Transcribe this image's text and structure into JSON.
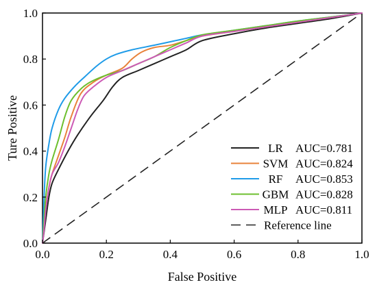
{
  "chart_data": {
    "type": "line",
    "xlabel": "False Positive",
    "ylabel": "Ture Positive",
    "xlim": [
      0,
      1.0
    ],
    "ylim": [
      0,
      1.0
    ],
    "x_ticks": [
      "0.0",
      "0.2",
      "0.4",
      "0.6",
      "0.8",
      "1.0"
    ],
    "y_ticks": [
      "0.0",
      "0.2",
      "0.4",
      "0.6",
      "0.8",
      "1.0"
    ],
    "grid": false,
    "legend_position": "bottom-right",
    "series": [
      {
        "name": "LR",
        "auc_label": "AUC=0.781",
        "color": "#222222",
        "points": [
          [
            0,
            0
          ],
          [
            0.005,
            0.05
          ],
          [
            0.01,
            0.1
          ],
          [
            0.02,
            0.2
          ],
          [
            0.03,
            0.26
          ],
          [
            0.05,
            0.32
          ],
          [
            0.08,
            0.4
          ],
          [
            0.11,
            0.47
          ],
          [
            0.15,
            0.55
          ],
          [
            0.19,
            0.62
          ],
          [
            0.22,
            0.68
          ],
          [
            0.25,
            0.72
          ],
          [
            0.3,
            0.75
          ],
          [
            0.35,
            0.78
          ],
          [
            0.4,
            0.81
          ],
          [
            0.45,
            0.84
          ],
          [
            0.5,
            0.88
          ],
          [
            0.6,
            0.91
          ],
          [
            0.7,
            0.935
          ],
          [
            0.8,
            0.955
          ],
          [
            0.9,
            0.975
          ],
          [
            1.0,
            1.0
          ]
        ]
      },
      {
        "name": "SVM",
        "auc_label": "AUC=0.824",
        "color": "#e8823a",
        "points": [
          [
            0,
            0
          ],
          [
            0.005,
            0.08
          ],
          [
            0.01,
            0.15
          ],
          [
            0.02,
            0.24
          ],
          [
            0.03,
            0.3
          ],
          [
            0.05,
            0.38
          ],
          [
            0.07,
            0.46
          ],
          [
            0.09,
            0.55
          ],
          [
            0.12,
            0.65
          ],
          [
            0.16,
            0.7
          ],
          [
            0.2,
            0.73
          ],
          [
            0.25,
            0.76
          ],
          [
            0.28,
            0.8
          ],
          [
            0.31,
            0.83
          ],
          [
            0.35,
            0.85
          ],
          [
            0.4,
            0.86
          ],
          [
            0.45,
            0.88
          ],
          [
            0.5,
            0.9
          ],
          [
            0.6,
            0.92
          ],
          [
            0.7,
            0.94
          ],
          [
            0.8,
            0.96
          ],
          [
            0.9,
            0.98
          ],
          [
            1.0,
            1.0
          ]
        ]
      },
      {
        "name": "RF",
        "auc_label": "AUC=0.853",
        "color": "#1e9be8",
        "points": [
          [
            0,
            0
          ],
          [
            0.005,
            0.2
          ],
          [
            0.01,
            0.33
          ],
          [
            0.02,
            0.43
          ],
          [
            0.03,
            0.5
          ],
          [
            0.05,
            0.58
          ],
          [
            0.07,
            0.63
          ],
          [
            0.1,
            0.68
          ],
          [
            0.13,
            0.72
          ],
          [
            0.17,
            0.77
          ],
          [
            0.2,
            0.8
          ],
          [
            0.23,
            0.82
          ],
          [
            0.28,
            0.84
          ],
          [
            0.35,
            0.86
          ],
          [
            0.4,
            0.875
          ],
          [
            0.45,
            0.89
          ],
          [
            0.5,
            0.905
          ],
          [
            0.6,
            0.925
          ],
          [
            0.7,
            0.945
          ],
          [
            0.8,
            0.965
          ],
          [
            0.9,
            0.982
          ],
          [
            1.0,
            1.0
          ]
        ]
      },
      {
        "name": "GBM",
        "auc_label": "AUC=0.828",
        "color": "#6cbf2e",
        "points": [
          [
            0,
            0
          ],
          [
            0.005,
            0.1
          ],
          [
            0.01,
            0.2
          ],
          [
            0.02,
            0.3
          ],
          [
            0.03,
            0.36
          ],
          [
            0.05,
            0.45
          ],
          [
            0.07,
            0.55
          ],
          [
            0.09,
            0.62
          ],
          [
            0.12,
            0.67
          ],
          [
            0.15,
            0.7
          ],
          [
            0.2,
            0.73
          ],
          [
            0.25,
            0.75
          ],
          [
            0.3,
            0.78
          ],
          [
            0.35,
            0.81
          ],
          [
            0.4,
            0.85
          ],
          [
            0.45,
            0.88
          ],
          [
            0.5,
            0.905
          ],
          [
            0.6,
            0.925
          ],
          [
            0.7,
            0.945
          ],
          [
            0.8,
            0.965
          ],
          [
            0.9,
            0.982
          ],
          [
            1.0,
            1.0
          ]
        ]
      },
      {
        "name": "MLP",
        "auc_label": "AUC=0.811",
        "color": "#cc5ab5",
        "points": [
          [
            0,
            0
          ],
          [
            0.005,
            0.06
          ],
          [
            0.01,
            0.14
          ],
          [
            0.02,
            0.24
          ],
          [
            0.03,
            0.3
          ],
          [
            0.05,
            0.35
          ],
          [
            0.07,
            0.42
          ],
          [
            0.09,
            0.5
          ],
          [
            0.11,
            0.58
          ],
          [
            0.13,
            0.64
          ],
          [
            0.16,
            0.68
          ],
          [
            0.2,
            0.72
          ],
          [
            0.25,
            0.75
          ],
          [
            0.3,
            0.78
          ],
          [
            0.35,
            0.81
          ],
          [
            0.4,
            0.84
          ],
          [
            0.45,
            0.87
          ],
          [
            0.5,
            0.9
          ],
          [
            0.6,
            0.92
          ],
          [
            0.7,
            0.94
          ],
          [
            0.8,
            0.96
          ],
          [
            0.9,
            0.98
          ],
          [
            1.0,
            1.0
          ]
        ]
      }
    ],
    "reference_line": {
      "name": "Reference line",
      "color": "#222222",
      "points": [
        [
          0,
          0
        ],
        [
          1.0,
          1.0
        ]
      ]
    }
  }
}
